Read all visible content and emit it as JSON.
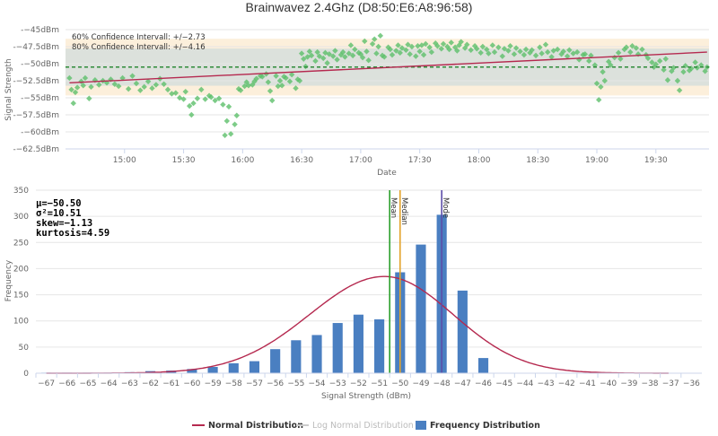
{
  "title": "Brainwavez 2.4Ghz (D8:50:E6:A8:96:58)",
  "chart_data": [
    {
      "type": "scatter",
      "ylabel": "Signal Strength",
      "xlabel": "Date",
      "ylim": [
        -62.5,
        -45
      ],
      "yticks": [
        "-−45dBm",
        "-−47.5dBm",
        "-−50dBm",
        "-−52.5dBm",
        "-−55dBm",
        "-−57.5dBm",
        "-−60dBm",
        "-−62.5dBm"
      ],
      "ytick_values": [
        -45,
        -47.5,
        -50,
        -52.5,
        -55,
        -57.5,
        -60,
        -62.5
      ],
      "xticks": [
        "15:00",
        "15:30",
        "16:00",
        "16:30",
        "17:00",
        "17:30",
        "18:00",
        "18:30",
        "19:00",
        "19:30"
      ],
      "xtick_minutes": [
        900,
        930,
        960,
        990,
        1020,
        1050,
        1080,
        1110,
        1140,
        1170
      ],
      "xlim_minutes": [
        870,
        1197
      ],
      "confidence_60_label": "60% Confidence Intervall: +/−2.73",
      "confidence_80_label": "80% Confidence Intervall: +/−4.16",
      "mean": -50.5,
      "ci60": 2.73,
      "ci80": 4.16,
      "trend": {
        "start": {
          "minute": 872,
          "value": -52.8
        },
        "end": {
          "minute": 1196,
          "value": -48.3
        }
      },
      "points_min_dbm": [
        [
          872,
          -52.1
        ],
        [
          873,
          -53.8
        ],
        [
          874,
          -55.8
        ],
        [
          875,
          -54.2
        ],
        [
          876,
          -53.5
        ],
        [
          878,
          -52.6
        ],
        [
          879,
          -53.2
        ],
        [
          880,
          -52.1
        ],
        [
          882,
          -55.1
        ],
        [
          883,
          -53.4
        ],
        [
          885,
          -52.4
        ],
        [
          887,
          -53.1
        ],
        [
          889,
          -52.5
        ],
        [
          891,
          -52.8
        ],
        [
          893,
          -52.3
        ],
        [
          895,
          -53.0
        ],
        [
          897,
          -53.3
        ],
        [
          899,
          -52.1
        ],
        [
          902,
          -53.7
        ],
        [
          904,
          -51.8
        ],
        [
          906,
          -52.9
        ],
        [
          908,
          -53.9
        ],
        [
          910,
          -53.4
        ],
        [
          912,
          -52.6
        ],
        [
          914,
          -53.6
        ],
        [
          916,
          -53.1
        ],
        [
          918,
          -52.2
        ],
        [
          920,
          -53.0
        ],
        [
          922,
          -53.8
        ],
        [
          924,
          -54.4
        ],
        [
          926,
          -54.3
        ],
        [
          928,
          -55.0
        ],
        [
          930,
          -55.2
        ],
        [
          931,
          -54.1
        ],
        [
          933,
          -56.2
        ],
        [
          934,
          -57.5
        ],
        [
          935,
          -55.8
        ],
        [
          937,
          -55.1
        ],
        [
          939,
          -53.8
        ],
        [
          941,
          -55.2
        ],
        [
          943,
          -54.7
        ],
        [
          944,
          -54.9
        ],
        [
          946,
          -55.4
        ],
        [
          948,
          -55.1
        ],
        [
          950,
          -56.0
        ],
        [
          951,
          -60.5
        ],
        [
          952,
          -58.4
        ],
        [
          953,
          -56.3
        ],
        [
          954,
          -60.3
        ],
        [
          956,
          -58.9
        ],
        [
          957,
          -57.6
        ],
        [
          958,
          -53.7
        ],
        [
          959,
          -53.9
        ],
        [
          961,
          -53.3
        ],
        [
          962,
          -52.7
        ],
        [
          963,
          -53.2
        ],
        [
          965,
          -53.1
        ],
        [
          966,
          -52.6
        ],
        [
          967,
          -52.2
        ],
        [
          969,
          -51.8
        ],
        [
          970,
          -51.9
        ],
        [
          972,
          -51.5
        ],
        [
          973,
          -52.7
        ],
        [
          974,
          -54.0
        ],
        [
          975,
          -55.4
        ],
        [
          977,
          -51.8
        ],
        [
          978,
          -53.3
        ],
        [
          979,
          -52.5
        ],
        [
          980,
          -53.2
        ],
        [
          981,
          -51.9
        ],
        [
          982,
          -52.1
        ],
        [
          984,
          -52.6
        ],
        [
          985,
          -51.6
        ],
        [
          987,
          -53.6
        ],
        [
          988,
          -52.3
        ],
        [
          989,
          -52.5
        ],
        [
          990,
          -48.5
        ],
        [
          991,
          -49.3
        ],
        [
          992,
          -50.4
        ],
        [
          993,
          -49.0
        ],
        [
          994,
          -48.2
        ],
        [
          995,
          -48.8
        ],
        [
          997,
          -49.6
        ],
        [
          998,
          -48.3
        ],
        [
          999,
          -48.9
        ],
        [
          1001,
          -49.2
        ],
        [
          1002,
          -48.4
        ],
        [
          1003,
          -49.9
        ],
        [
          1004,
          -48.6
        ],
        [
          1006,
          -48.9
        ],
        [
          1007,
          -48.1
        ],
        [
          1008,
          -49.4
        ],
        [
          1010,
          -48.7
        ],
        [
          1011,
          -48.3
        ],
        [
          1012,
          -49.0
        ],
        [
          1014,
          -48.5
        ],
        [
          1015,
          -47.3
        ],
        [
          1016,
          -48.8
        ],
        [
          1017,
          -47.9
        ],
        [
          1019,
          -48.4
        ],
        [
          1020,
          -48.6
        ],
        [
          1021,
          -49.1
        ],
        [
          1022,
          -46.7
        ],
        [
          1023,
          -48.2
        ],
        [
          1024,
          -49.5
        ],
        [
          1026,
          -47.1
        ],
        [
          1027,
          -46.4
        ],
        [
          1028,
          -48.5
        ],
        [
          1029,
          -47.5
        ],
        [
          1030,
          -45.9
        ],
        [
          1031,
          -48.8
        ],
        [
          1032,
          -49.0
        ],
        [
          1034,
          -47.6
        ],
        [
          1035,
          -47.9
        ],
        [
          1036,
          -48.7
        ],
        [
          1038,
          -48.1
        ],
        [
          1039,
          -47.3
        ],
        [
          1040,
          -48.4
        ],
        [
          1041,
          -47.7
        ],
        [
          1043,
          -48.0
        ],
        [
          1044,
          -47.2
        ],
        [
          1045,
          -48.6
        ],
        [
          1046,
          -47.5
        ],
        [
          1048,
          -48.9
        ],
        [
          1049,
          -47.4
        ],
        [
          1050,
          -48.2
        ],
        [
          1051,
          -47.3
        ],
        [
          1052,
          -48.7
        ],
        [
          1053,
          -47.1
        ],
        [
          1055,
          -47.6
        ],
        [
          1056,
          -48.3
        ],
        [
          1058,
          -47.0
        ],
        [
          1059,
          -47.4
        ],
        [
          1061,
          -47.8
        ],
        [
          1062,
          -47.1
        ],
        [
          1064,
          -47.5
        ],
        [
          1065,
          -47.9
        ],
        [
          1066,
          -46.9
        ],
        [
          1068,
          -47.6
        ],
        [
          1069,
          -48.1
        ],
        [
          1070,
          -47.3
        ],
        [
          1071,
          -46.8
        ],
        [
          1073,
          -47.7
        ],
        [
          1074,
          -47.2
        ],
        [
          1076,
          -48.0
        ],
        [
          1078,
          -47.4
        ],
        [
          1079,
          -47.8
        ],
        [
          1081,
          -48.4
        ],
        [
          1082,
          -47.5
        ],
        [
          1084,
          -47.9
        ],
        [
          1085,
          -48.5
        ],
        [
          1087,
          -47.3
        ],
        [
          1088,
          -48.3
        ],
        [
          1090,
          -47.6
        ],
        [
          1092,
          -48.9
        ],
        [
          1093,
          -47.8
        ],
        [
          1095,
          -48.1
        ],
        [
          1096,
          -47.4
        ],
        [
          1098,
          -48.6
        ],
        [
          1099,
          -47.7
        ],
        [
          1101,
          -48.2
        ],
        [
          1103,
          -48.7
        ],
        [
          1104,
          -47.9
        ],
        [
          1106,
          -48.4
        ],
        [
          1107,
          -48.0
        ],
        [
          1109,
          -48.8
        ],
        [
          1111,
          -47.6
        ],
        [
          1112,
          -48.5
        ],
        [
          1114,
          -47.2
        ],
        [
          1115,
          -48.3
        ],
        [
          1117,
          -49.0
        ],
        [
          1118,
          -48.1
        ],
        [
          1120,
          -47.9
        ],
        [
          1122,
          -48.6
        ],
        [
          1123,
          -48.2
        ],
        [
          1125,
          -48.9
        ],
        [
          1126,
          -48.0
        ],
        [
          1128,
          -48.5
        ],
        [
          1130,
          -48.3
        ],
        [
          1131,
          -49.4
        ],
        [
          1133,
          -48.7
        ],
        [
          1134,
          -48.6
        ],
        [
          1136,
          -49.6
        ],
        [
          1137,
          -48.8
        ],
        [
          1139,
          -50.2
        ],
        [
          1140,
          -52.9
        ],
        [
          1141,
          -55.3
        ],
        [
          1142,
          -53.4
        ],
        [
          1143,
          -51.2
        ],
        [
          1144,
          -52.5
        ],
        [
          1146,
          -49.7
        ],
        [
          1147,
          -50.2
        ],
        [
          1149,
          -49.1
        ],
        [
          1151,
          -48.4
        ],
        [
          1152,
          -49.3
        ],
        [
          1154,
          -47.9
        ],
        [
          1155,
          -47.6
        ],
        [
          1157,
          -48.3
        ],
        [
          1158,
          -47.4
        ],
        [
          1160,
          -47.7
        ],
        [
          1161,
          -48.6
        ],
        [
          1163,
          -47.9
        ],
        [
          1165,
          -48.7
        ],
        [
          1166,
          -49.2
        ],
        [
          1168,
          -49.8
        ],
        [
          1169,
          -50.5
        ],
        [
          1170,
          -50.1
        ],
        [
          1172,
          -49.6
        ],
        [
          1174,
          -50.9
        ],
        [
          1175,
          -49.3
        ],
        [
          1176,
          -52.4
        ],
        [
          1178,
          -51.1
        ],
        [
          1179,
          -50.6
        ],
        [
          1181,
          -52.5
        ],
        [
          1182,
          -53.9
        ],
        [
          1184,
          -51.2
        ],
        [
          1185,
          -50.3
        ],
        [
          1187,
          -51.0
        ],
        [
          1188,
          -50.7
        ],
        [
          1190,
          -49.8
        ],
        [
          1191,
          -50.6
        ],
        [
          1193,
          -50.2
        ],
        [
          1195,
          -51.1
        ],
        [
          1196,
          -50.5
        ]
      ]
    },
    {
      "type": "bar",
      "ylabel": "Frequency",
      "xlabel": "Signal Strength (dBm)",
      "ylim": [
        0,
        350
      ],
      "yticks": [
        0,
        50,
        100,
        150,
        200,
        250,
        300,
        350
      ],
      "categories": [
        -67,
        -66,
        -65,
        -64,
        -63,
        -62,
        -61,
        -60,
        -59,
        -58,
        -57,
        -56,
        -55,
        -54,
        -53,
        -52,
        -51,
        -50,
        -49,
        -48,
        -47,
        -46,
        -45,
        -44,
        -43,
        -42,
        -41,
        -40,
        -39,
        -38,
        -37,
        -36
      ],
      "category_labels": [
        "−67",
        "−66",
        "−65",
        "−64",
        "−63",
        "−62",
        "−61",
        "−60",
        "−59",
        "−58",
        "−57",
        "−56",
        "−55",
        "−54",
        "−53",
        "−52",
        "−51",
        "−50",
        "−49",
        "−48",
        "−47",
        "−46",
        "−45",
        "−44",
        "−43",
        "−42",
        "−41",
        "−40",
        "−39",
        "−38",
        "−37",
        "−36"
      ],
      "series": [
        {
          "name": "Frequency Distribution",
          "color": "#4a7fc1",
          "values": [
            1,
            1,
            1,
            1,
            2,
            4,
            5,
            8,
            12,
            19,
            23,
            46,
            63,
            73,
            96,
            112,
            103,
            193,
            246,
            303,
            158,
            29,
            0,
            0,
            0,
            0,
            0,
            0,
            0,
            0,
            0,
            0
          ]
        },
        {
          "name": "Normal Distribution",
          "color": "#b5294f",
          "mean": -50.75,
          "peak": 185,
          "sigma_left": 3.6,
          "sigma_right": 3.3
        },
        {
          "name": "Log Normal Distribution",
          "color": "#cccccc"
        }
      ],
      "stats": [
        "μ=−50.50",
        "σ²=10.51",
        "skew=−1.13",
        "kurtosis=4.59"
      ],
      "markers": [
        {
          "label": "Mean",
          "value": -50.5,
          "color": "#2ca02c"
        },
        {
          "label": "Median",
          "value": -50.0,
          "color": "#e3a32b"
        },
        {
          "label": "Mode",
          "value": -48.0,
          "color": "#5c4ea8"
        }
      ]
    }
  ],
  "legend": {
    "normal": "Normal Distribution",
    "lognormal": "Log Normal Distribution",
    "frequency": "Frequency Distribution"
  }
}
